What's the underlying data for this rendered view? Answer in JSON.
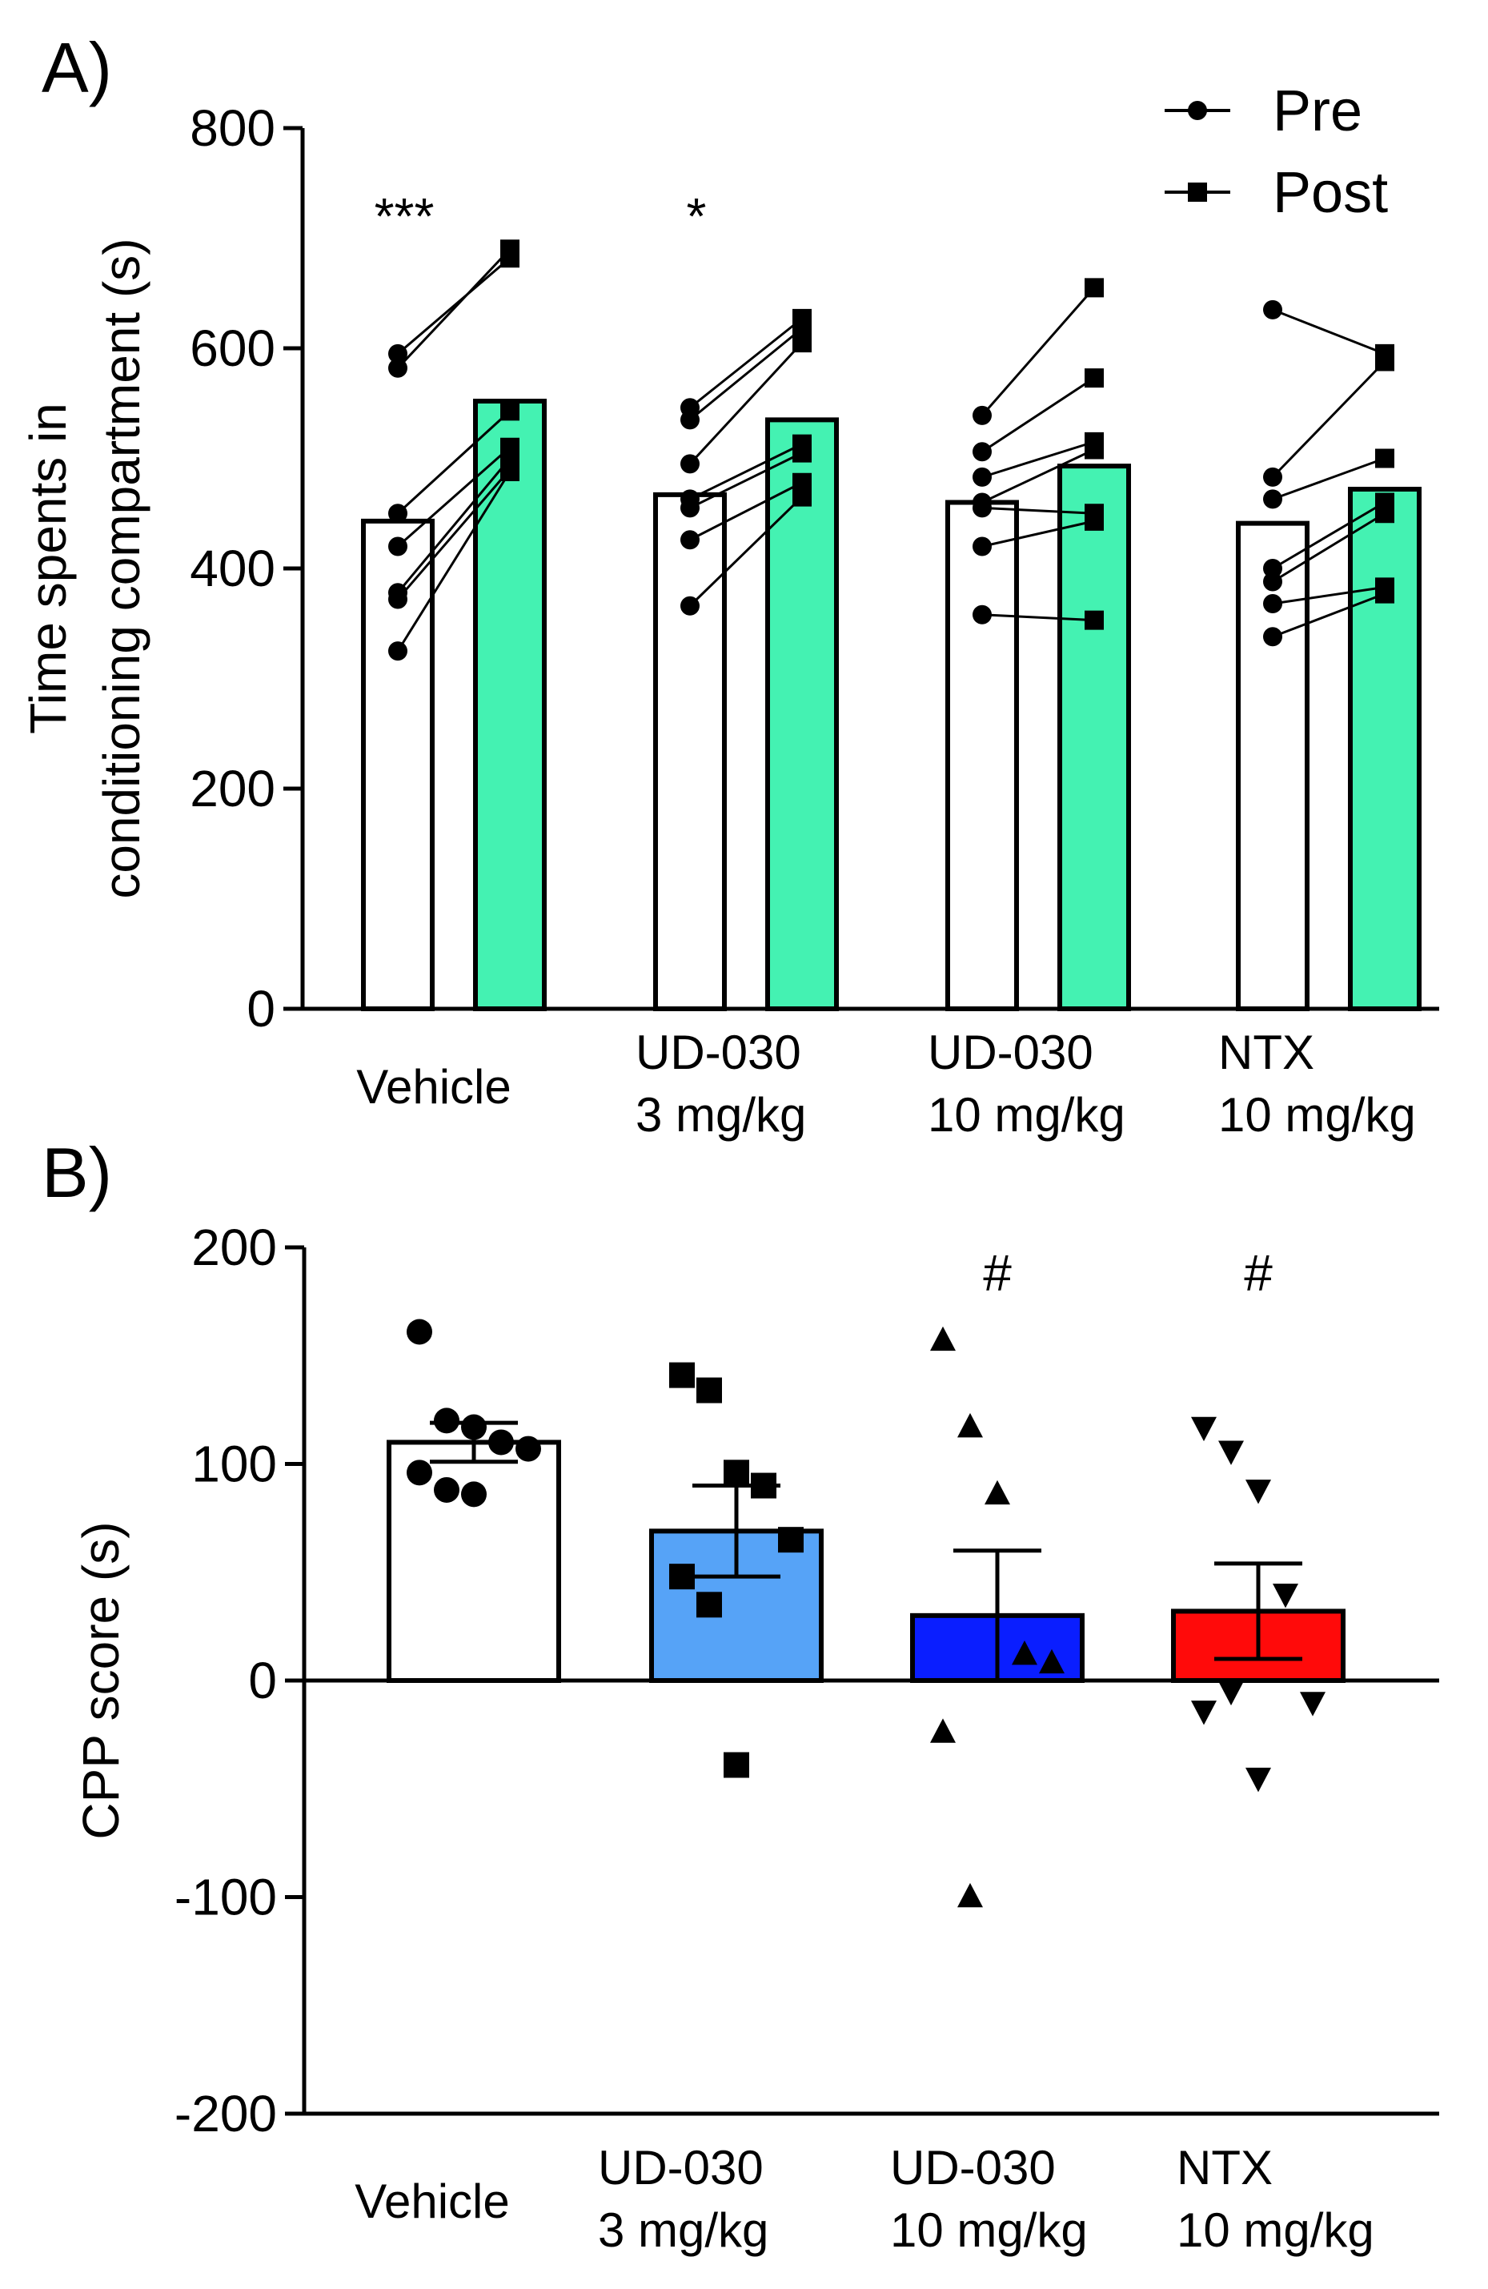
{
  "chart_data": [
    {
      "panel": "A)",
      "type": "bar",
      "ylabel": [
        "Time spents in",
        "conditioning compartment (s)"
      ],
      "ylim": [
        0,
        800
      ],
      "yticks": [
        0,
        200,
        400,
        600,
        800
      ],
      "categories": [
        [
          "Vehicle"
        ],
        [
          "UD-030",
          "3 mg/kg"
        ],
        [
          "UD-030",
          "10 mg/kg"
        ],
        [
          "NTX",
          "10 mg/kg"
        ]
      ],
      "series": [
        {
          "name": "Pre",
          "marker": "circle",
          "fill": "#ffffff",
          "values": [
            443,
            467,
            460,
            441
          ]
        },
        {
          "name": "Post",
          "marker": "square",
          "fill": "#44f2b2",
          "values": [
            552,
            535,
            493,
            472
          ]
        }
      ],
      "paired_points": [
        [
          [
            595,
            682
          ],
          [
            582,
            690
          ],
          [
            450,
            543
          ],
          [
            420,
            510
          ],
          [
            378,
            500
          ],
          [
            372,
            490
          ],
          [
            325,
            488
          ]
        ],
        [
          [
            546,
            627
          ],
          [
            535,
            618
          ],
          [
            495,
            605
          ],
          [
            463,
            513
          ],
          [
            455,
            505
          ],
          [
            426,
            478
          ],
          [
            366,
            465
          ]
        ],
        [
          [
            539,
            655
          ],
          [
            506,
            573
          ],
          [
            483,
            515
          ],
          [
            460,
            508
          ],
          [
            455,
            450
          ],
          [
            420,
            443
          ],
          [
            358,
            353
          ]
        ],
        [
          [
            635,
            595
          ],
          [
            483,
            588
          ],
          [
            463,
            500
          ],
          [
            400,
            460
          ],
          [
            388,
            450
          ],
          [
            368,
            383
          ],
          [
            338,
            377
          ]
        ]
      ],
      "significance": [
        "***",
        "*",
        "",
        ""
      ],
      "legend": [
        "Pre",
        "Post"
      ]
    },
    {
      "panel": "B)",
      "type": "bar",
      "ylabel": "CPP score (s)",
      "ylim": [
        -200,
        200
      ],
      "yticks": [
        -200,
        -100,
        0,
        100,
        200
      ],
      "categories": [
        [
          "Vehicle"
        ],
        [
          "UD-030",
          "3 mg/kg"
        ],
        [
          "UD-030",
          "10 mg/kg"
        ],
        [
          "NTX",
          "10 mg/kg"
        ]
      ],
      "values": [
        110,
        69,
        30,
        32
      ],
      "sem": [
        9,
        21,
        30,
        22
      ],
      "colors": [
        "#ffffff",
        "#56a3f7",
        "#0a1eff",
        "#ff0a0a"
      ],
      "markers": [
        "circle",
        "square",
        "triangle-up",
        "triangle-down"
      ],
      "points": [
        [
          161,
          120,
          117,
          110,
          107,
          96,
          88,
          86
        ],
        [
          141,
          134,
          96,
          90,
          65,
          48,
          35,
          -39
        ],
        [
          157,
          117,
          86,
          12,
          8,
          -24,
          -100
        ],
        [
          117,
          106,
          88,
          40,
          -10,
          -14,
          -5,
          -45
        ]
      ],
      "significance": [
        "",
        "",
        "#",
        "#"
      ]
    }
  ]
}
